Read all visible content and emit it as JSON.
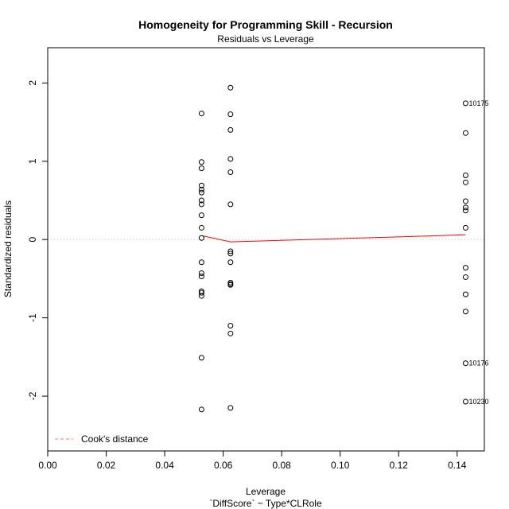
{
  "chart_data": {
    "type": "scatter",
    "title": "Homogeneity for Programming Skill - Recursion",
    "subtitle": "Residuals vs Leverage",
    "xlabel": "Leverage",
    "xlabel2": "`DiffScore` ~ Type*CLRole",
    "ylabel": "Standardized residuals",
    "xlim": [
      0.0,
      0.1493
    ],
    "ylim": [
      -2.7,
      2.45
    ],
    "x_ticks": [
      0.0,
      0.02,
      0.04,
      0.06,
      0.08,
      0.1,
      0.12,
      0.14
    ],
    "x_tick_labels": [
      "0.00",
      "0.02",
      "0.04",
      "0.06",
      "0.08",
      "0.10",
      "0.12",
      "0.14"
    ],
    "y_ticks": [
      -2,
      -1,
      0,
      1,
      2
    ],
    "y_tick_labels": [
      "-2",
      "-1",
      "0",
      "1",
      "2"
    ],
    "points": [
      {
        "x": 0.0526,
        "y": 1.61
      },
      {
        "x": 0.0526,
        "y": 0.99
      },
      {
        "x": 0.0526,
        "y": 0.91
      },
      {
        "x": 0.0526,
        "y": 0.69
      },
      {
        "x": 0.0526,
        "y": 0.64
      },
      {
        "x": 0.0526,
        "y": 0.6
      },
      {
        "x": 0.0526,
        "y": 0.5
      },
      {
        "x": 0.0526,
        "y": 0.45
      },
      {
        "x": 0.0526,
        "y": 0.31
      },
      {
        "x": 0.0526,
        "y": 0.15
      },
      {
        "x": 0.0526,
        "y": 0.02
      },
      {
        "x": 0.0526,
        "y": -0.29
      },
      {
        "x": 0.0526,
        "y": -0.43
      },
      {
        "x": 0.0526,
        "y": -0.47
      },
      {
        "x": 0.0526,
        "y": -0.66
      },
      {
        "x": 0.0526,
        "y": -0.68
      },
      {
        "x": 0.0526,
        "y": -0.72
      },
      {
        "x": 0.0526,
        "y": -1.51
      },
      {
        "x": 0.0526,
        "y": -2.17
      },
      {
        "x": 0.0625,
        "y": 1.94
      },
      {
        "x": 0.0625,
        "y": 1.6
      },
      {
        "x": 0.0625,
        "y": 1.4
      },
      {
        "x": 0.0625,
        "y": 1.03
      },
      {
        "x": 0.0625,
        "y": 0.86
      },
      {
        "x": 0.0625,
        "y": 0.45
      },
      {
        "x": 0.0625,
        "y": -0.15
      },
      {
        "x": 0.0625,
        "y": -0.18
      },
      {
        "x": 0.0625,
        "y": -0.29
      },
      {
        "x": 0.0625,
        "y": -0.55
      },
      {
        "x": 0.0625,
        "y": -0.57
      },
      {
        "x": 0.0625,
        "y": -0.58
      },
      {
        "x": 0.0625,
        "y": -1.1
      },
      {
        "x": 0.0625,
        "y": -1.2
      },
      {
        "x": 0.0625,
        "y": -2.15
      },
      {
        "x": 0.1429,
        "y": 1.74
      },
      {
        "x": 0.1429,
        "y": 1.36
      },
      {
        "x": 0.1429,
        "y": 0.82
      },
      {
        "x": 0.1429,
        "y": 0.73
      },
      {
        "x": 0.1429,
        "y": 0.49
      },
      {
        "x": 0.1429,
        "y": 0.41
      },
      {
        "x": 0.1429,
        "y": 0.37
      },
      {
        "x": 0.1429,
        "y": 0.15
      },
      {
        "x": 0.1429,
        "y": -0.36
      },
      {
        "x": 0.1429,
        "y": -0.48
      },
      {
        "x": 0.1429,
        "y": -0.7
      },
      {
        "x": 0.1429,
        "y": -0.92
      },
      {
        "x": 0.1429,
        "y": -1.58
      },
      {
        "x": 0.1429,
        "y": -2.07
      }
    ],
    "point_labels": [
      {
        "x": 0.1429,
        "y": 1.74,
        "text": "10175"
      },
      {
        "x": 0.1429,
        "y": -1.58,
        "text": "10176"
      },
      {
        "x": 0.1429,
        "y": -2.07,
        "text": "10230"
      }
    ],
    "smooth_line": {
      "color": "#ff0000",
      "x": [
        0.0526,
        0.0625,
        0.1429
      ],
      "y": [
        0.05,
        -0.03,
        0.06
      ]
    },
    "legend": {
      "position": "bottom-left",
      "label": "Cook's distance",
      "color": "#ff6b6b",
      "line_style": "dashed"
    },
    "reference_lines": {
      "h": 0,
      "v": 0,
      "color": "#bbbbbb",
      "style": "dotted"
    }
  }
}
